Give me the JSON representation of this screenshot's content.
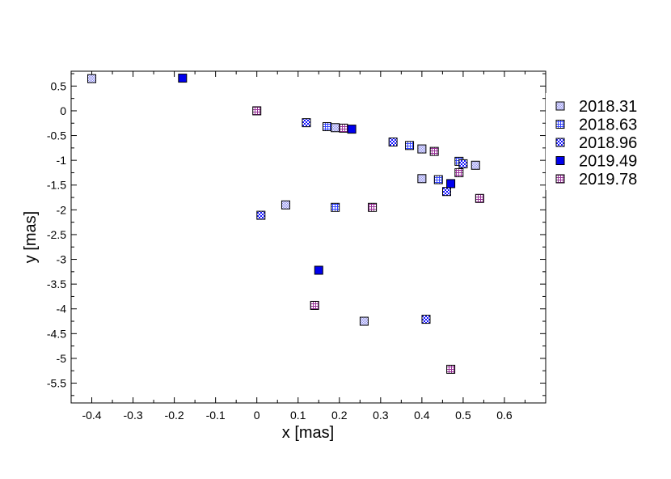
{
  "chart_data": {
    "type": "scatter",
    "title": "",
    "xlabel": "x [mas]",
    "ylabel": "y [mas]",
    "xlim": [
      -0.45,
      0.7
    ],
    "ylim": [
      -5.9,
      0.8
    ],
    "xticks": [
      -0.4,
      -0.3,
      -0.2,
      -0.1,
      0,
      0.1,
      0.2,
      0.3,
      0.4,
      0.5,
      0.6
    ],
    "yticks": [
      0.5,
      0,
      -0.5,
      -1,
      -1.5,
      -2,
      -2.5,
      -3,
      -3.5,
      -4,
      -4.5,
      -5,
      -5.5
    ],
    "grid": false,
    "legend_position": "outside-right",
    "series": [
      {
        "name": "2018.31",
        "color": "#8888ee",
        "pattern": "fine-checker",
        "points": [
          {
            "x": -0.4,
            "y": 0.65
          },
          {
            "x": 0.19,
            "y": -0.34
          },
          {
            "x": 0.4,
            "y": -0.77
          },
          {
            "x": 0.53,
            "y": -1.1
          },
          {
            "x": 0.4,
            "y": -1.37
          },
          {
            "x": 0.07,
            "y": -1.9
          },
          {
            "x": 0.26,
            "y": -4.25
          }
        ]
      },
      {
        "name": "2018.63",
        "color": "#3344ff",
        "pattern": "grid",
        "points": [
          {
            "x": 0.17,
            "y": -0.32
          },
          {
            "x": 0.37,
            "y": -0.7
          },
          {
            "x": 0.49,
            "y": -1.02
          },
          {
            "x": 0.44,
            "y": -1.39
          },
          {
            "x": 0.19,
            "y": -1.95
          }
        ]
      },
      {
        "name": "2018.96",
        "color": "#1111ff",
        "pattern": "coarse-checker",
        "points": [
          {
            "x": 0.12,
            "y": -0.24
          },
          {
            "x": 0.33,
            "y": -0.63
          },
          {
            "x": 0.5,
            "y": -1.07
          },
          {
            "x": 0.46,
            "y": -1.63
          },
          {
            "x": 0.01,
            "y": -2.11
          },
          {
            "x": 0.41,
            "y": -4.21
          }
        ]
      },
      {
        "name": "2019.49",
        "color": "#0000ee",
        "pattern": "solid",
        "points": [
          {
            "x": -0.18,
            "y": 0.66
          },
          {
            "x": 0.23,
            "y": -0.37
          },
          {
            "x": 0.47,
            "y": -1.47
          },
          {
            "x": 0.15,
            "y": -3.22
          }
        ]
      },
      {
        "name": "2019.78",
        "color": "#993399",
        "pattern": "grid",
        "points": [
          {
            "x": 0.0,
            "y": 0.0
          },
          {
            "x": 0.21,
            "y": -0.35
          },
          {
            "x": 0.43,
            "y": -0.82
          },
          {
            "x": 0.49,
            "y": -1.25
          },
          {
            "x": 0.54,
            "y": -1.77
          },
          {
            "x": 0.28,
            "y": -1.95
          },
          {
            "x": 0.14,
            "y": -3.93
          },
          {
            "x": 0.47,
            "y": -5.22
          }
        ]
      }
    ]
  }
}
